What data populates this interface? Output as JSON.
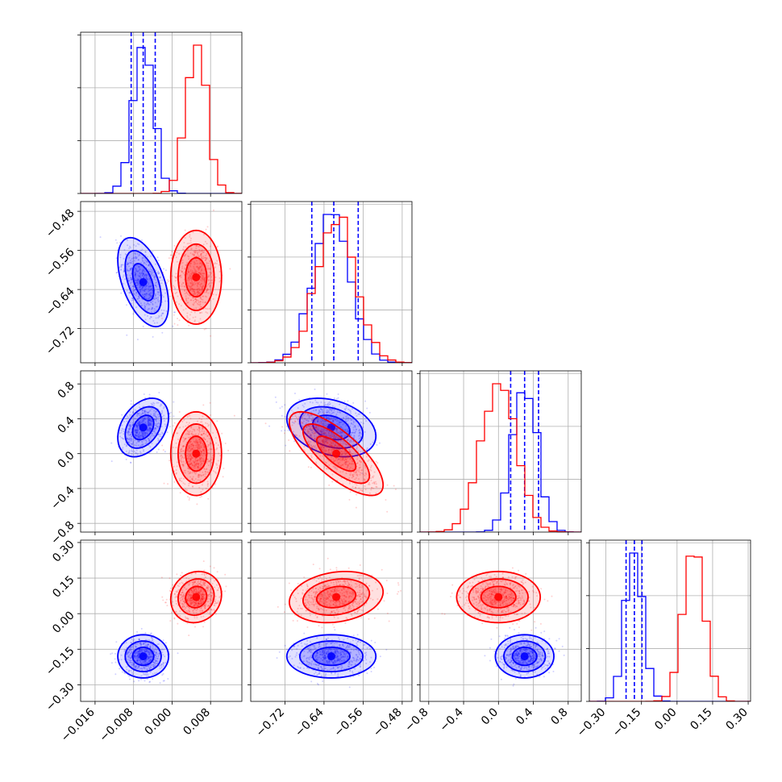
{
  "chart_data": {
    "type": "corner",
    "grid": true,
    "parameters": [
      {
        "range": [
          -0.019,
          0.0145
        ],
        "ticks": [
          -0.016,
          -0.008,
          0.0,
          0.008
        ],
        "tick_labels": [
          "−0.016",
          "−0.008",
          "0.000",
          "0.008"
        ]
      },
      {
        "range": [
          -0.79,
          -0.46
        ],
        "ticks": [
          -0.72,
          -0.64,
          -0.56,
          -0.48
        ],
        "tick_labels": [
          "−0.72",
          "−0.64",
          "−0.56",
          "−0.48"
        ]
      },
      {
        "range": [
          -0.9,
          0.95
        ],
        "ticks": [
          -0.8,
          -0.4,
          0.0,
          0.4,
          0.8
        ],
        "tick_labels": [
          "−0.8",
          "−0.4",
          "0.0",
          "0.4",
          "0.8"
        ]
      },
      {
        "range": [
          -0.37,
          0.31
        ],
        "ticks": [
          -0.3,
          -0.15,
          0.0,
          0.15,
          0.3
        ],
        "tick_labels": [
          "−0.30",
          "−0.15",
          "0.00",
          "0.15",
          "0.30"
        ]
      }
    ],
    "series": [
      {
        "color": "#0000ff",
        "mean": [
          -0.006,
          -0.625,
          0.3,
          -0.18
        ],
        "sd": [
          0.0022,
          0.038,
          0.14,
          0.038
        ],
        "quantiles": [
          [
            -0.0085,
            -0.006,
            -0.0035
          ],
          [
            -0.665,
            -0.62,
            -0.57
          ],
          [
            0.14,
            0.3,
            0.46
          ],
          [
            -0.215,
            -0.18,
            -0.148
          ]
        ],
        "correlations": {
          "0_1": -0.5,
          "0_2": 0.35,
          "1_2": -0.3,
          "1_3": 0.0,
          "0_3": 0.0,
          "2_3": 0.0
        }
      },
      {
        "color": "#ff0000",
        "mean": [
          0.005,
          -0.615,
          0.0,
          0.07
        ],
        "sd": [
          0.0022,
          0.04,
          0.2,
          0.045
        ],
        "quantiles": [],
        "correlations": {
          "0_1": 0.0,
          "0_2": 0.0,
          "1_2": -0.75,
          "1_3": 0.2,
          "0_3": 0.1,
          "2_3": 0.0
        }
      }
    ]
  }
}
